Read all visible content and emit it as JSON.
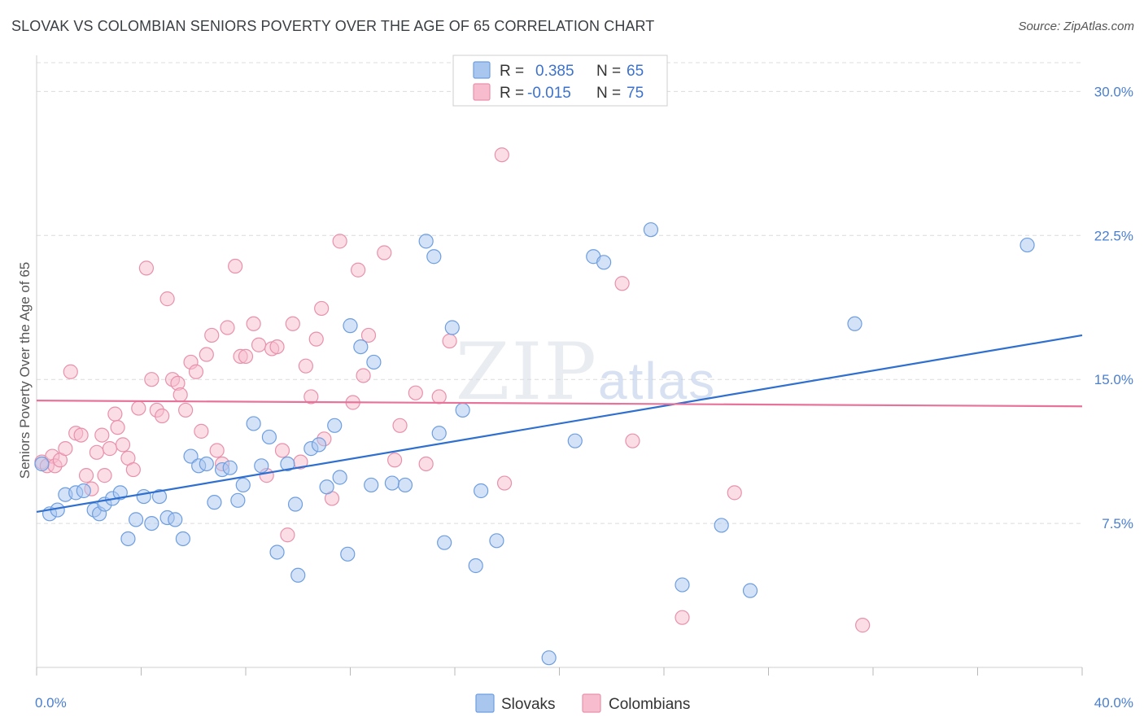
{
  "header": {
    "title": "SLOVAK VS COLOMBIAN SENIORS POVERTY OVER THE AGE OF 65 CORRELATION CHART",
    "source": "Source: ZipAtlas.com"
  },
  "watermark": "ZIPatlas",
  "colors": {
    "slovak_fill": "#a9c6ef",
    "slovak_stroke": "#6d9ee0",
    "slovak_line": "#2f6fcf",
    "colombian_fill": "#f7bccd",
    "colombian_stroke": "#e891ab",
    "colombian_line": "#e8739a",
    "grid": "#dcdcdc",
    "tick_text": "#4a7fd0"
  },
  "legend": {
    "rows": [
      {
        "r_label": "R =",
        "r_value": "0.385",
        "n_label": "N =",
        "n_value": "65"
      },
      {
        "r_label": "R =",
        "r_value": "-0.015",
        "n_label": "N =",
        "n_value": "75"
      }
    ]
  },
  "bottom_legend": {
    "items": [
      "Slovaks",
      "Colombians"
    ]
  },
  "chart_data": {
    "type": "scatter",
    "title": "SLOVAK VS COLOMBIAN SENIORS POVERTY OVER THE AGE OF 65 CORRELATION CHART",
    "xlabel": "",
    "ylabel": "Seniors Poverty Over the Age of 65",
    "xlim": [
      0,
      40
    ],
    "ylim": [
      0,
      31.5
    ],
    "x_tick_labels": [
      "0.0%",
      "40.0%"
    ],
    "y_ticks": [
      7.5,
      15.0,
      22.5,
      30.0
    ],
    "y_tick_labels": [
      "7.5%",
      "15.0%",
      "22.5%",
      "30.0%"
    ],
    "grid": true,
    "legend_position": "top-center",
    "series": [
      {
        "name": "Slovaks",
        "R": 0.385,
        "N": 65,
        "trend": [
          [
            0,
            8.1
          ],
          [
            40,
            17.3
          ]
        ],
        "points": [
          [
            0.2,
            10.6
          ],
          [
            0.5,
            8.0
          ],
          [
            0.8,
            8.2
          ],
          [
            1.1,
            9.0
          ],
          [
            1.5,
            9.1
          ],
          [
            1.8,
            9.2
          ],
          [
            2.2,
            8.2
          ],
          [
            2.4,
            8.0
          ],
          [
            2.6,
            8.5
          ],
          [
            2.9,
            8.8
          ],
          [
            3.2,
            9.1
          ],
          [
            3.5,
            6.7
          ],
          [
            3.8,
            7.7
          ],
          [
            4.1,
            8.9
          ],
          [
            4.4,
            7.5
          ],
          [
            4.7,
            8.9
          ],
          [
            5.0,
            7.8
          ],
          [
            5.3,
            7.7
          ],
          [
            5.6,
            6.7
          ],
          [
            5.9,
            11.0
          ],
          [
            6.2,
            10.5
          ],
          [
            6.5,
            10.6
          ],
          [
            6.8,
            8.6
          ],
          [
            7.1,
            10.3
          ],
          [
            7.4,
            10.4
          ],
          [
            7.7,
            8.7
          ],
          [
            7.9,
            9.5
          ],
          [
            8.3,
            12.7
          ],
          [
            8.6,
            10.5
          ],
          [
            8.9,
            12.0
          ],
          [
            9.2,
            6.0
          ],
          [
            9.6,
            10.6
          ],
          [
            9.9,
            8.5
          ],
          [
            10.0,
            4.8
          ],
          [
            10.5,
            11.4
          ],
          [
            10.8,
            11.6
          ],
          [
            11.1,
            9.4
          ],
          [
            11.4,
            12.6
          ],
          [
            11.6,
            9.9
          ],
          [
            11.9,
            5.9
          ],
          [
            12.0,
            17.8
          ],
          [
            12.4,
            16.7
          ],
          [
            12.8,
            9.5
          ],
          [
            12.9,
            15.9
          ],
          [
            13.6,
            9.6
          ],
          [
            14.1,
            9.5
          ],
          [
            14.9,
            22.2
          ],
          [
            15.2,
            21.4
          ],
          [
            15.4,
            12.2
          ],
          [
            15.6,
            6.5
          ],
          [
            15.9,
            17.7
          ],
          [
            16.3,
            13.4
          ],
          [
            16.8,
            5.3
          ],
          [
            17.0,
            9.2
          ],
          [
            17.6,
            6.6
          ],
          [
            19.6,
            0.5
          ],
          [
            20.6,
            11.8
          ],
          [
            21.3,
            21.4
          ],
          [
            21.7,
            21.1
          ],
          [
            23.5,
            22.8
          ],
          [
            24.7,
            4.3
          ],
          [
            26.2,
            7.4
          ],
          [
            27.3,
            4.0
          ],
          [
            31.3,
            17.9
          ],
          [
            37.9,
            22.0
          ]
        ]
      },
      {
        "name": "Colombians",
        "R": -0.015,
        "N": 75,
        "trend": [
          [
            0,
            13.9
          ],
          [
            40,
            13.6
          ]
        ],
        "points": [
          [
            0.2,
            10.7
          ],
          [
            0.4,
            10.5
          ],
          [
            0.6,
            11.0
          ],
          [
            0.7,
            10.5
          ],
          [
            0.9,
            10.8
          ],
          [
            1.1,
            11.4
          ],
          [
            1.3,
            15.4
          ],
          [
            1.5,
            12.2
          ],
          [
            1.7,
            12.1
          ],
          [
            1.9,
            10.0
          ],
          [
            2.1,
            9.3
          ],
          [
            2.3,
            11.2
          ],
          [
            2.5,
            12.1
          ],
          [
            2.6,
            10.0
          ],
          [
            2.8,
            11.4
          ],
          [
            3.0,
            13.2
          ],
          [
            3.1,
            12.5
          ],
          [
            3.3,
            11.6
          ],
          [
            3.5,
            10.9
          ],
          [
            3.7,
            10.3
          ],
          [
            3.9,
            13.5
          ],
          [
            4.2,
            20.8
          ],
          [
            4.4,
            15.0
          ],
          [
            4.6,
            13.4
          ],
          [
            4.8,
            13.1
          ],
          [
            5.0,
            19.2
          ],
          [
            5.2,
            15.0
          ],
          [
            5.4,
            14.8
          ],
          [
            5.5,
            14.2
          ],
          [
            5.7,
            13.4
          ],
          [
            5.9,
            15.9
          ],
          [
            6.1,
            15.4
          ],
          [
            6.3,
            12.3
          ],
          [
            6.5,
            16.3
          ],
          [
            6.7,
            17.3
          ],
          [
            6.9,
            11.3
          ],
          [
            7.1,
            10.6
          ],
          [
            7.3,
            17.7
          ],
          [
            7.6,
            20.9
          ],
          [
            7.8,
            16.2
          ],
          [
            8.0,
            16.2
          ],
          [
            8.3,
            17.9
          ],
          [
            8.5,
            16.8
          ],
          [
            8.8,
            10.0
          ],
          [
            9.0,
            16.6
          ],
          [
            9.2,
            16.7
          ],
          [
            9.4,
            11.3
          ],
          [
            9.6,
            6.9
          ],
          [
            9.8,
            17.9
          ],
          [
            10.1,
            10.7
          ],
          [
            10.3,
            15.7
          ],
          [
            10.5,
            14.1
          ],
          [
            10.7,
            17.1
          ],
          [
            10.9,
            18.7
          ],
          [
            11.0,
            11.9
          ],
          [
            11.3,
            8.8
          ],
          [
            11.6,
            22.2
          ],
          [
            12.1,
            13.8
          ],
          [
            12.3,
            20.7
          ],
          [
            12.5,
            15.2
          ],
          [
            12.7,
            17.3
          ],
          [
            13.3,
            21.6
          ],
          [
            13.7,
            10.8
          ],
          [
            13.9,
            12.6
          ],
          [
            14.5,
            14.3
          ],
          [
            14.9,
            10.6
          ],
          [
            15.4,
            14.1
          ],
          [
            15.8,
            17.0
          ],
          [
            17.8,
            26.7
          ],
          [
            17.9,
            9.6
          ],
          [
            22.4,
            20.0
          ],
          [
            22.8,
            11.8
          ],
          [
            24.7,
            2.6
          ],
          [
            26.7,
            9.1
          ],
          [
            31.6,
            2.2
          ]
        ]
      }
    ]
  }
}
